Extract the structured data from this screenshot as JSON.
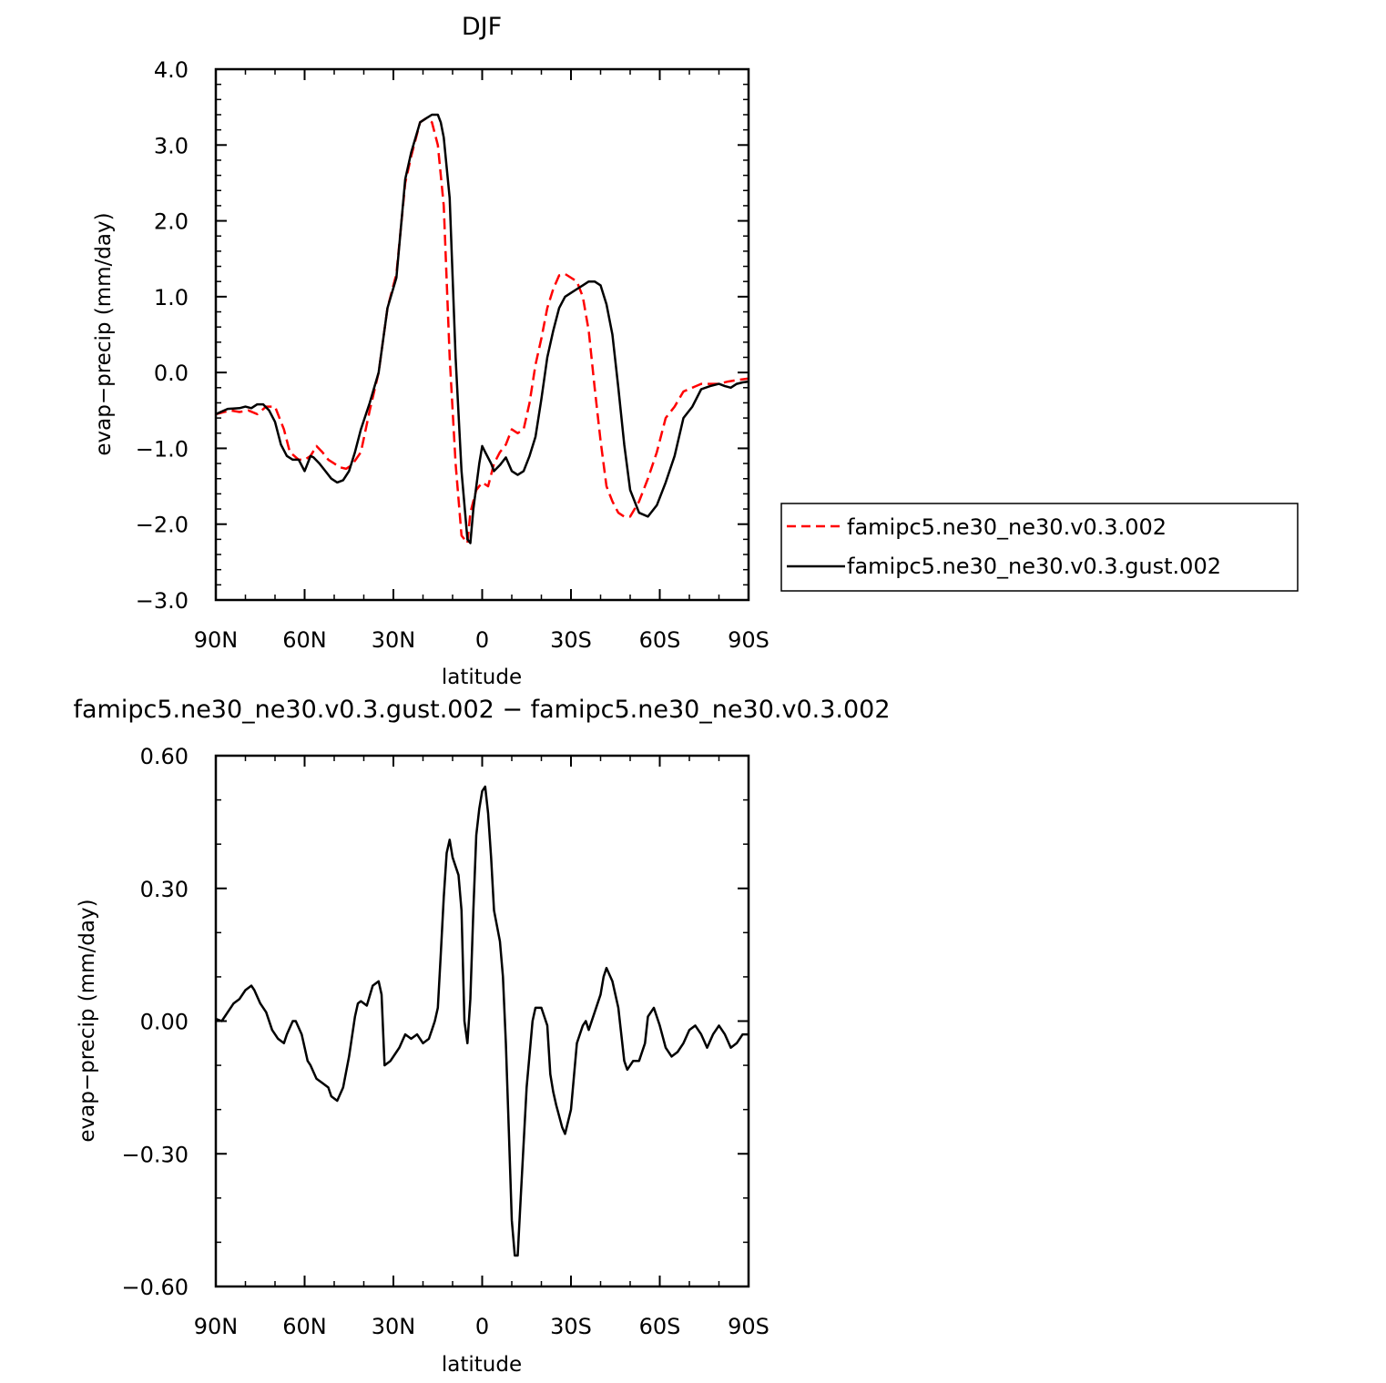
{
  "chart_data": [
    {
      "type": "line",
      "title": "DJF",
      "xlabel": "latitude",
      "ylabel": "evap−precip (mm/day)",
      "xlim": [
        -90,
        90
      ],
      "ylim": [
        -3.0,
        4.0
      ],
      "x_direction": "north-to-south",
      "x_ticks": [
        {
          "value": -90,
          "label": "90N"
        },
        {
          "value": -60,
          "label": "60N"
        },
        {
          "value": -30,
          "label": "30N"
        },
        {
          "value": 0,
          "label": "0"
        },
        {
          "value": 30,
          "label": "30S"
        },
        {
          "value": 60,
          "label": "60S"
        },
        {
          "value": 90,
          "label": "90S"
        }
      ],
      "y_ticks": [
        {
          "value": 4.0,
          "label": "4.0"
        },
        {
          "value": 3.0,
          "label": "3.0"
        },
        {
          "value": 2.0,
          "label": "2.0"
        },
        {
          "value": 1.0,
          "label": "1.0"
        },
        {
          "value": 0.0,
          "label": "0.0"
        },
        {
          "value": -1.0,
          "label": "−1.0"
        },
        {
          "value": -2.0,
          "label": "−2.0"
        },
        {
          "value": -3.0,
          "label": "−3.0"
        }
      ],
      "grid": false,
      "legend": "right",
      "series": [
        {
          "name": "famipc5.ne30_ne30.v0.3.002",
          "color": "#ff0000",
          "dash": true,
          "x": [
            -90,
            -85,
            -82,
            -79,
            -76,
            -73,
            -70,
            -67,
            -65,
            -62,
            -60,
            -58,
            -56,
            -54,
            -52,
            -50,
            -48,
            -46,
            -44,
            -41,
            -38,
            -35,
            -32,
            -29,
            -26,
            -24,
            -21,
            -19,
            -17,
            -15,
            -13,
            -11,
            -9,
            -7,
            -5,
            -4,
            -2,
            0,
            2,
            4,
            6,
            8,
            10,
            12,
            14,
            16,
            18,
            20,
            22,
            24,
            26,
            28,
            30,
            32,
            34,
            36,
            38,
            40,
            42,
            44,
            46,
            48,
            50,
            53,
            56,
            59,
            62,
            65,
            68,
            71,
            74,
            77,
            80,
            83,
            86,
            90
          ],
          "y": [
            -0.55,
            -0.5,
            -0.52,
            -0.5,
            -0.55,
            -0.45,
            -0.45,
            -0.75,
            -1.05,
            -1.15,
            -1.15,
            -1.1,
            -0.97,
            -1.05,
            -1.15,
            -1.2,
            -1.25,
            -1.27,
            -1.22,
            -1.05,
            -0.5,
            0.0,
            0.85,
            1.3,
            2.5,
            2.85,
            3.3,
            3.35,
            3.3,
            3.0,
            2.2,
            0.2,
            -1.2,
            -2.15,
            -2.25,
            -1.85,
            -1.55,
            -1.45,
            -1.5,
            -1.2,
            -1.05,
            -0.95,
            -0.75,
            -0.8,
            -0.75,
            -0.4,
            0.1,
            0.45,
            0.85,
            1.1,
            1.28,
            1.3,
            1.25,
            1.2,
            1.0,
            0.55,
            -0.2,
            -0.9,
            -1.5,
            -1.7,
            -1.85,
            -1.9,
            -1.9,
            -1.7,
            -1.4,
            -1.05,
            -0.6,
            -0.45,
            -0.25,
            -0.2,
            -0.15,
            -0.15,
            -0.15,
            -0.12,
            -0.1,
            -0.08
          ]
        },
        {
          "name": "famipc5.ne30_ne30.v0.3.gust.002",
          "color": "#000000",
          "dash": false,
          "x": [
            -90,
            -86,
            -82,
            -80,
            -78,
            -76,
            -74,
            -72,
            -70,
            -68,
            -66,
            -64,
            -62,
            -60,
            -59,
            -58,
            -57,
            -55,
            -53,
            -51,
            -49,
            -47,
            -45,
            -43,
            -41,
            -38,
            -35,
            -32,
            -29,
            -26,
            -24,
            -21,
            -19,
            -17,
            -16,
            -15,
            -14,
            -13,
            -11,
            -9,
            -7,
            -5,
            -4,
            -3,
            -1,
            0,
            1,
            3,
            4,
            6,
            8,
            10,
            12,
            14,
            16,
            18,
            20,
            22,
            24,
            26,
            28,
            30,
            32,
            34,
            36,
            38,
            40,
            42,
            44,
            46,
            48,
            50,
            53,
            56,
            59,
            62,
            65,
            68,
            71,
            74,
            77,
            80,
            82,
            84,
            86,
            88,
            90
          ],
          "y": [
            -0.55,
            -0.48,
            -0.47,
            -0.45,
            -0.47,
            -0.42,
            -0.42,
            -0.5,
            -0.65,
            -0.95,
            -1.1,
            -1.15,
            -1.15,
            -1.3,
            -1.2,
            -1.1,
            -1.12,
            -1.2,
            -1.3,
            -1.4,
            -1.45,
            -1.42,
            -1.3,
            -1.05,
            -0.75,
            -0.4,
            0.0,
            0.85,
            1.25,
            2.55,
            2.9,
            3.3,
            3.35,
            3.4,
            3.4,
            3.4,
            3.3,
            3.1,
            2.3,
            0.2,
            -1.3,
            -2.2,
            -2.25,
            -1.8,
            -1.2,
            -0.97,
            -1.05,
            -1.2,
            -1.3,
            -1.22,
            -1.12,
            -1.3,
            -1.35,
            -1.3,
            -1.1,
            -0.85,
            -0.35,
            0.2,
            0.55,
            0.85,
            1.0,
            1.05,
            1.1,
            1.15,
            1.2,
            1.2,
            1.15,
            0.9,
            0.5,
            -0.2,
            -0.95,
            -1.55,
            -1.85,
            -1.9,
            -1.75,
            -1.45,
            -1.1,
            -0.6,
            -0.45,
            -0.22,
            -0.18,
            -0.15,
            -0.18,
            -0.2,
            -0.15,
            -0.13,
            -0.12
          ]
        }
      ]
    },
    {
      "type": "line",
      "title": "famipc5.ne30_ne30.v0.3.gust.002 − famipc5.ne30_ne30.v0.3.002",
      "xlabel": "latitude",
      "ylabel": "evap−precip (mm/day)",
      "xlim": [
        -90,
        90
      ],
      "ylim": [
        -0.6,
        0.6
      ],
      "x_direction": "north-to-south",
      "x_ticks": [
        {
          "value": -90,
          "label": "90N"
        },
        {
          "value": -60,
          "label": "60N"
        },
        {
          "value": -30,
          "label": "30N"
        },
        {
          "value": 0,
          "label": "0"
        },
        {
          "value": 30,
          "label": "30S"
        },
        {
          "value": 60,
          "label": "60S"
        },
        {
          "value": 90,
          "label": "90S"
        }
      ],
      "y_ticks": [
        {
          "value": 0.6,
          "label": "0.60"
        },
        {
          "value": 0.3,
          "label": "0.30"
        },
        {
          "value": 0.0,
          "label": "0.00"
        },
        {
          "value": -0.3,
          "label": "−0.30"
        },
        {
          "value": -0.6,
          "label": "−0.60"
        }
      ],
      "grid": false,
      "series": [
        {
          "color": "#000000",
          "dash": false,
          "x": [
            -90,
            -88,
            -86,
            -84,
            -82,
            -80,
            -78,
            -77,
            -75,
            -73,
            -71,
            -69,
            -67,
            -66,
            -64,
            -63,
            -61,
            -59,
            -58,
            -56,
            -54,
            -52,
            -51,
            -49,
            -47,
            -45,
            -43,
            -42,
            -41,
            -39,
            -37,
            -35,
            -34,
            -33,
            -31,
            -29,
            -28,
            -26,
            -24,
            -22,
            -20,
            -18,
            -17,
            -16,
            -15,
            -14,
            -13,
            -12,
            -11,
            -10,
            -8,
            -7,
            -6,
            -5,
            -4,
            -3,
            -2,
            -1,
            0,
            1,
            2,
            3,
            4,
            6,
            7,
            8,
            9,
            10,
            11,
            12,
            13,
            15,
            17,
            18,
            20,
            22,
            23,
            24,
            25,
            27,
            28,
            30,
            32,
            34,
            35,
            36,
            38,
            40,
            41,
            42,
            44,
            46,
            48,
            49,
            51,
            53,
            55,
            56,
            58,
            60,
            62,
            64,
            66,
            68,
            70,
            72,
            74,
            76,
            78,
            80,
            82,
            84,
            86,
            88,
            90
          ],
          "y": [
            0.005,
            0.0,
            0.02,
            0.04,
            0.05,
            0.07,
            0.08,
            0.07,
            0.04,
            0.02,
            -0.02,
            -0.04,
            -0.05,
            -0.03,
            0.0,
            0.0,
            -0.03,
            -0.09,
            -0.1,
            -0.13,
            -0.14,
            -0.15,
            -0.17,
            -0.18,
            -0.15,
            -0.08,
            0.01,
            0.04,
            0.045,
            0.035,
            0.08,
            0.09,
            0.06,
            -0.1,
            -0.09,
            -0.07,
            -0.06,
            -0.03,
            -0.04,
            -0.03,
            -0.05,
            -0.04,
            -0.02,
            0.0,
            0.03,
            0.15,
            0.28,
            0.38,
            0.41,
            0.37,
            0.33,
            0.25,
            0.0,
            -0.05,
            0.05,
            0.25,
            0.42,
            0.48,
            0.52,
            0.53,
            0.47,
            0.37,
            0.25,
            0.18,
            0.1,
            -0.05,
            -0.25,
            -0.45,
            -0.53,
            -0.53,
            -0.4,
            -0.15,
            0.0,
            0.03,
            0.03,
            -0.01,
            -0.12,
            -0.16,
            -0.19,
            -0.24,
            -0.255,
            -0.2,
            -0.05,
            -0.01,
            0.0,
            -0.02,
            0.02,
            0.06,
            0.1,
            0.12,
            0.09,
            0.03,
            -0.09,
            -0.11,
            -0.09,
            -0.09,
            -0.05,
            0.01,
            0.03,
            -0.01,
            -0.06,
            -0.08,
            -0.07,
            -0.05,
            -0.02,
            -0.01,
            -0.03,
            -0.06,
            -0.03,
            -0.01,
            -0.03,
            -0.06,
            -0.05,
            -0.03,
            -0.03
          ]
        }
      ]
    }
  ]
}
